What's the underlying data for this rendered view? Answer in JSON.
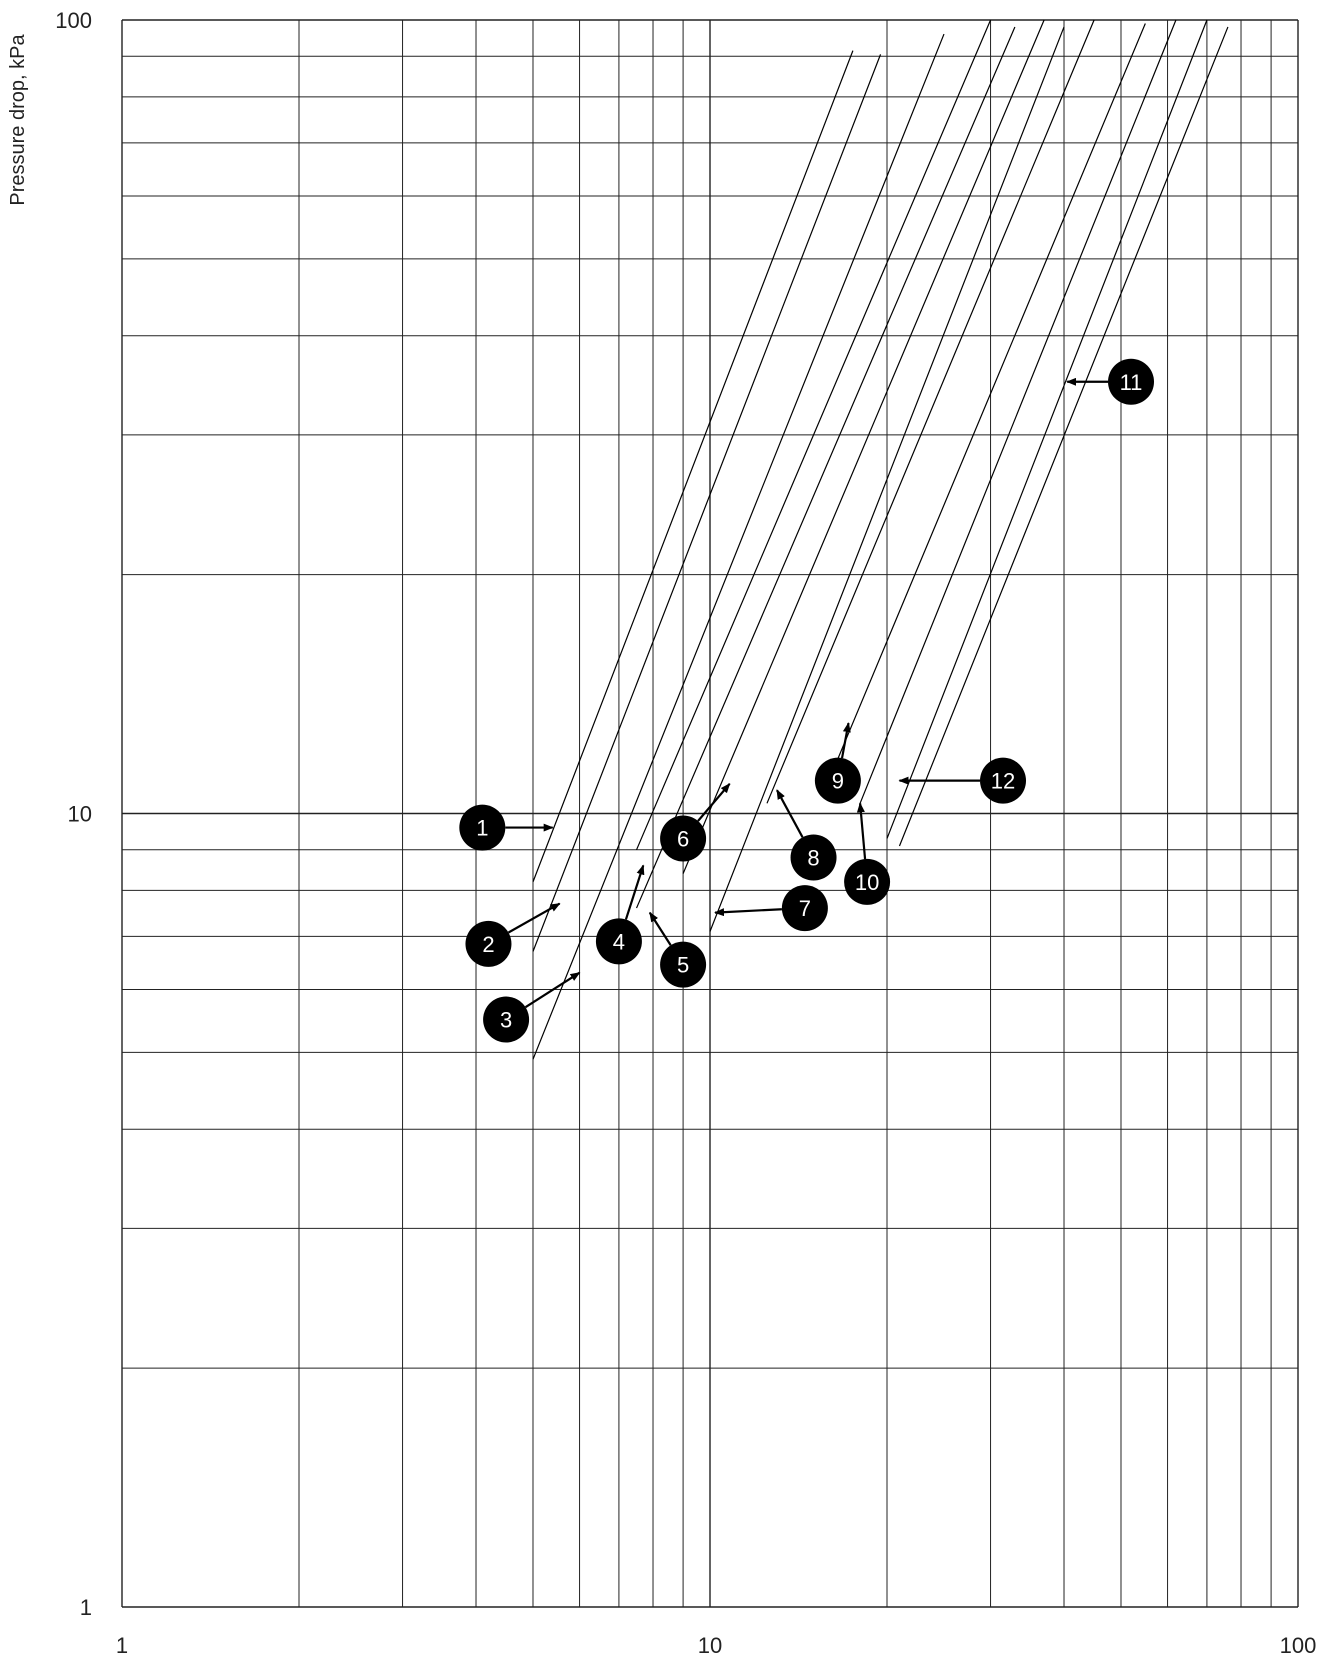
{
  "chart_data": {
    "type": "line",
    "title": "",
    "xlabel": "",
    "ylabel": "Pressure drop, kPa",
    "x_scale": "log",
    "y_scale": "log",
    "xlim": [
      1,
      100
    ],
    "ylim": [
      1,
      100
    ],
    "x_ticks": [
      "1",
      "10",
      "100"
    ],
    "y_ticks": [
      "1",
      "10",
      "100"
    ],
    "grid": true,
    "legend": "none",
    "colors": {
      "grid": "#222222",
      "line": "#000000",
      "marker_fill": "#000000",
      "marker_text": "#ffffff"
    },
    "series": [
      {
        "x": [
          5.0,
          17.5
        ],
        "y": [
          8.2,
          91.5
        ]
      },
      {
        "x": [
          5.0,
          19.5
        ],
        "y": [
          6.7,
          90.5
        ]
      },
      {
        "x": [
          5.0,
          25.0
        ],
        "y": [
          4.9,
          96.0
        ]
      },
      {
        "x": [
          7.5,
          30.0
        ],
        "y": [
          9.0,
          100.0
        ]
      },
      {
        "x": [
          7.5,
          33.0
        ],
        "y": [
          7.6,
          98.0
        ]
      },
      {
        "x": [
          9.0,
          37.0
        ],
        "y": [
          8.4,
          100.0
        ]
      },
      {
        "x": [
          10.0,
          40.0
        ],
        "y": [
          7.1,
          98.0
        ]
      },
      {
        "x": [
          12.5,
          45.0
        ],
        "y": [
          10.3,
          100.0
        ]
      },
      {
        "x": [
          16.0,
          55.0
        ],
        "y": [
          11.1,
          99.0
        ]
      },
      {
        "x": [
          18.0,
          62.0
        ],
        "y": [
          10.3,
          100.0
        ]
      },
      {
        "x": [
          20.0,
          70.0
        ],
        "y": [
          9.3,
          100.0
        ]
      },
      {
        "x": [
          21.0,
          76.0
        ],
        "y": [
          9.1,
          98.0
        ]
      }
    ],
    "annotations": [
      {
        "label": "1",
        "x": 4.1,
        "y": 9.6,
        "arrow_to": [
          5.4,
          9.6
        ]
      },
      {
        "label": "2",
        "x": 4.2,
        "y": 6.85,
        "arrow_to": [
          5.55,
          7.7
        ]
      },
      {
        "label": "3",
        "x": 4.5,
        "y": 5.5,
        "arrow_to": [
          6.0,
          6.3
        ]
      },
      {
        "label": "4",
        "x": 7.0,
        "y": 6.9,
        "arrow_to": [
          7.7,
          8.6
        ]
      },
      {
        "label": "5",
        "x": 9.0,
        "y": 6.45,
        "arrow_to": [
          7.9,
          7.5
        ]
      },
      {
        "label": "6",
        "x": 9.0,
        "y": 9.3,
        "arrow_to": [
          10.8,
          10.9
        ]
      },
      {
        "label": "7",
        "x": 14.5,
        "y": 7.6,
        "arrow_to": [
          10.2,
          7.5
        ]
      },
      {
        "label": "8",
        "x": 15.0,
        "y": 8.8,
        "arrow_to": [
          13.0,
          10.7
        ]
      },
      {
        "label": "9",
        "x": 16.5,
        "y": 11.0,
        "arrow_to": [
          17.2,
          13.0
        ]
      },
      {
        "label": "10",
        "x": 18.5,
        "y": 8.2,
        "arrow_to": [
          18.0,
          10.3
        ]
      },
      {
        "label": "11",
        "x": 52.0,
        "y": 35.0,
        "arrow_to": [
          40.5,
          35.0
        ]
      },
      {
        "label": "12",
        "x": 31.5,
        "y": 11.0,
        "arrow_to": [
          21.0,
          11.0
        ]
      }
    ]
  }
}
